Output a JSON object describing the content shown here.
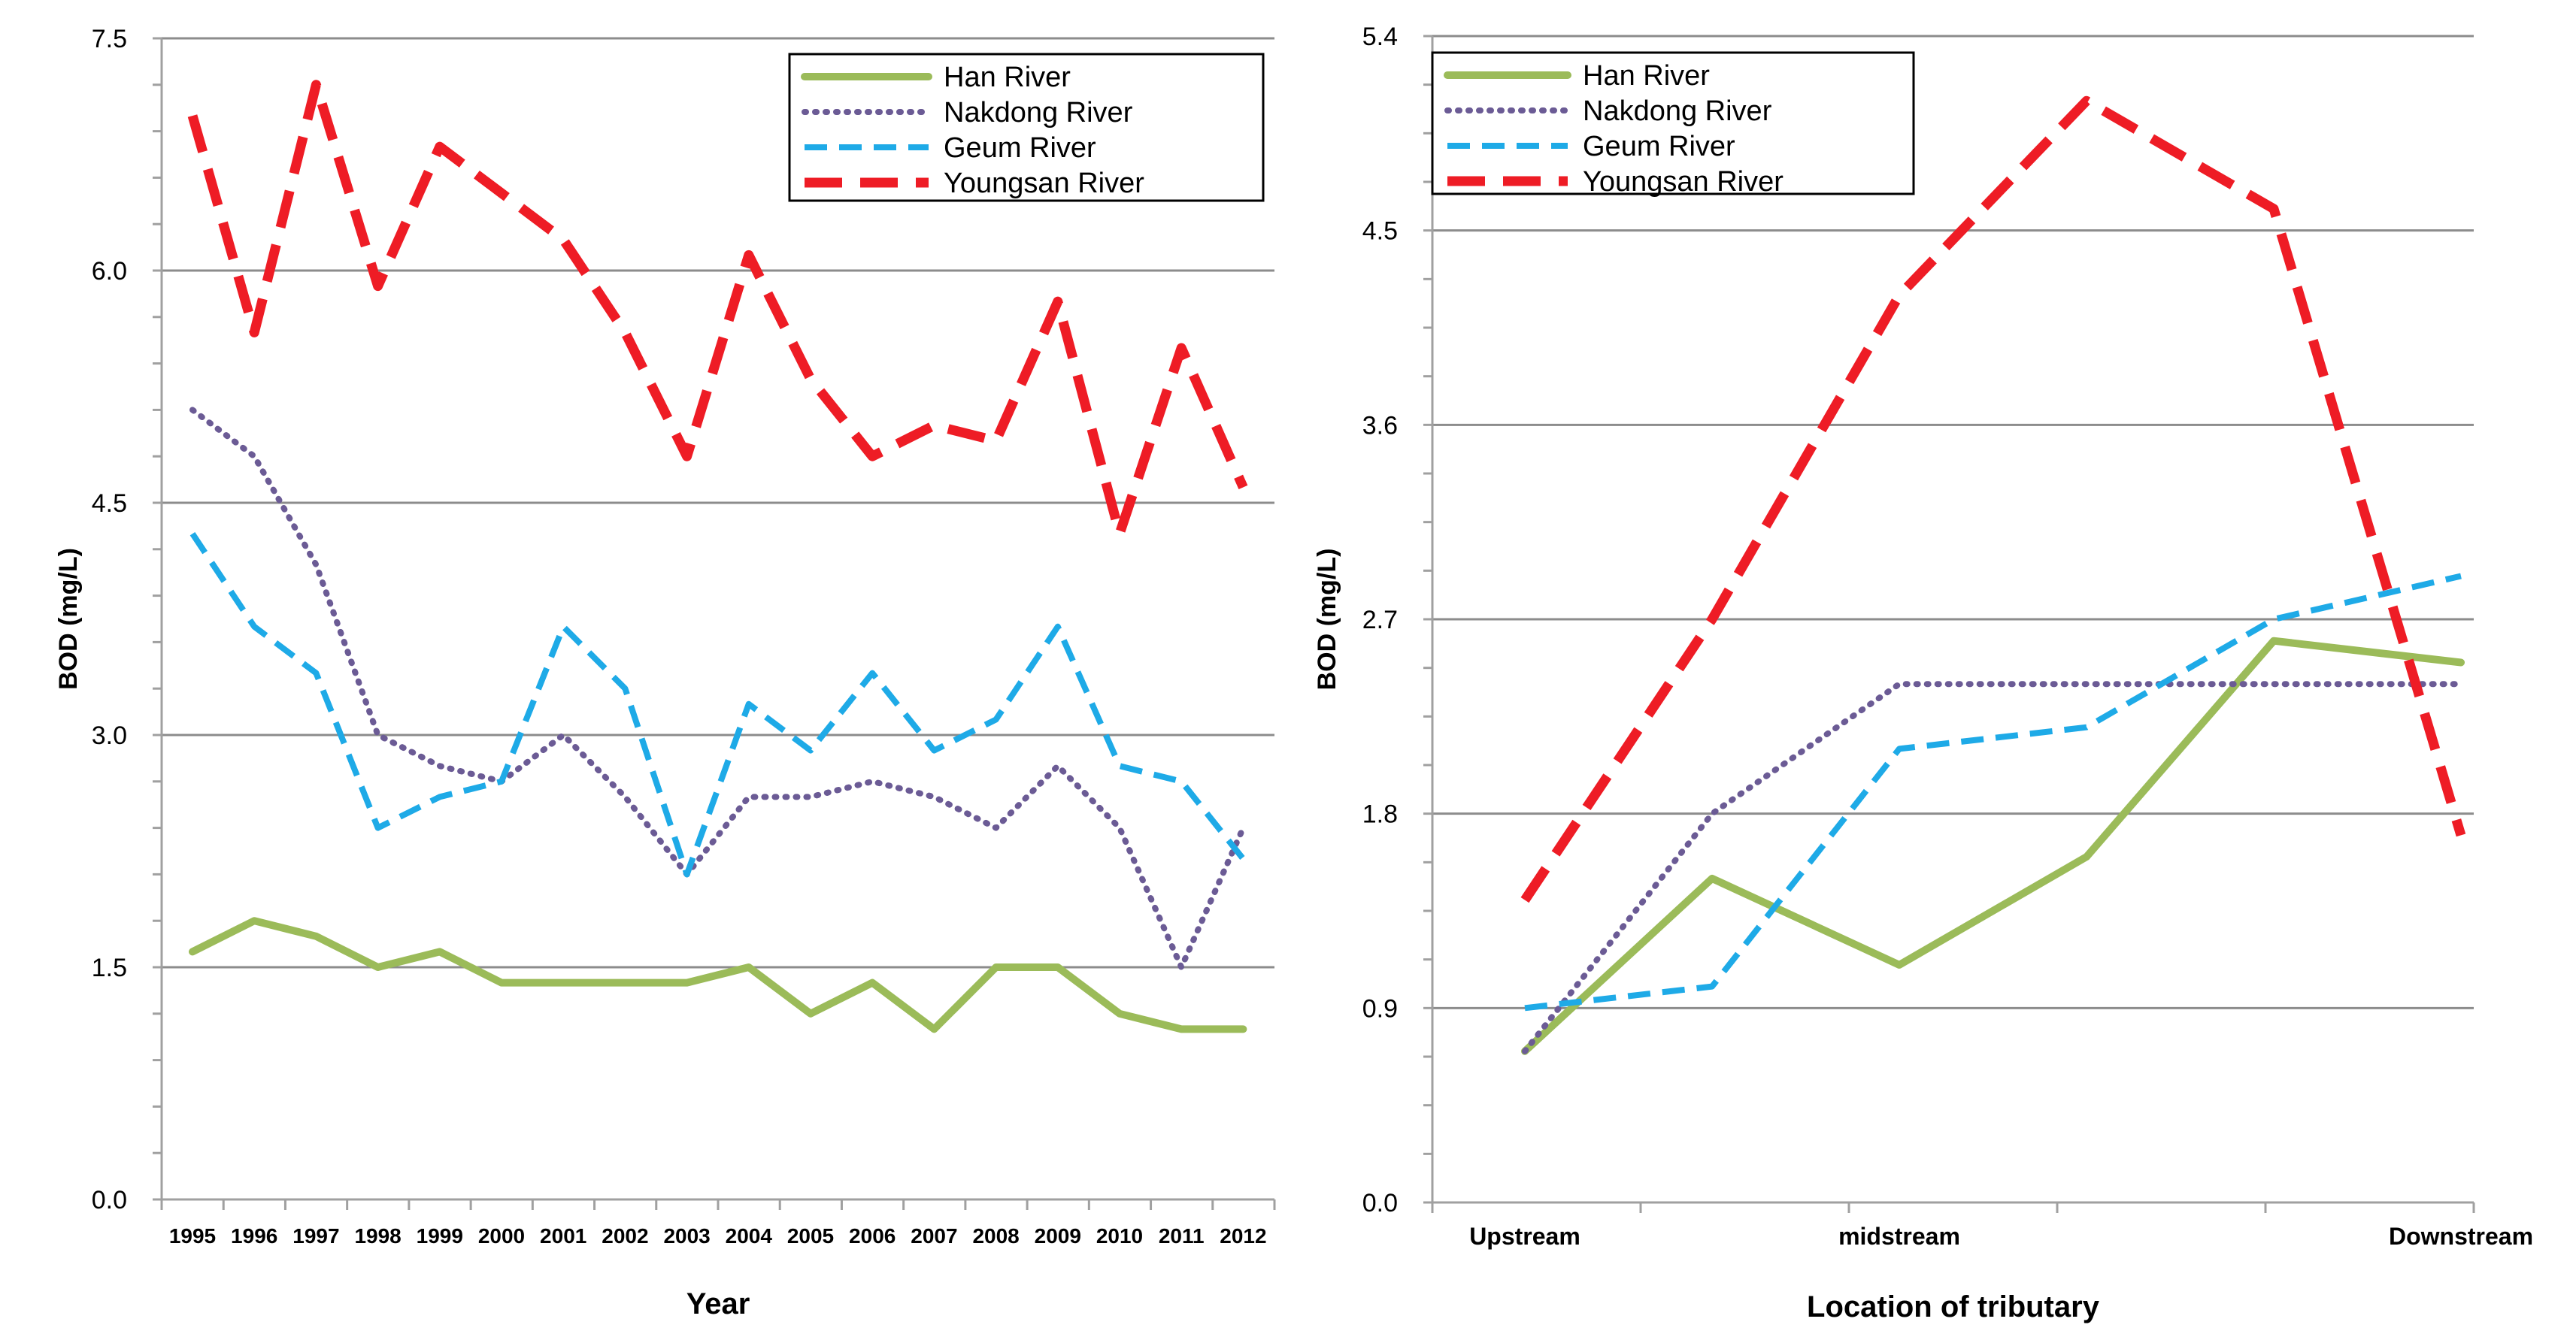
{
  "colors": {
    "han": "#9BBB59",
    "nakdong": "#6B5B95",
    "geum": "#1EAAE7",
    "youngsan": "#EE1C25",
    "grid": "#8C8C8C",
    "axis": "#A0A0A0",
    "text": "#000000"
  },
  "chart_data": [
    {
      "type": "line",
      "title": "",
      "xlabel": "Year",
      "ylabel": "BOD (mg/L)",
      "ylim": [
        0,
        7.5
      ],
      "yticks": [
        "0.0",
        "1.5",
        "3.0",
        "4.5",
        "6.0",
        "7.5"
      ],
      "categories": [
        "1995",
        "1996",
        "1997",
        "1998",
        "1999",
        "2000",
        "2001",
        "2002",
        "2003",
        "2004",
        "2005",
        "2006",
        "2007",
        "2008",
        "2009",
        "2010",
        "2011",
        "2012"
      ],
      "legend_position": "top-right",
      "series": [
        {
          "name": "Han River",
          "style": "solid",
          "color_key": "han",
          "values": [
            1.6,
            1.8,
            1.7,
            1.5,
            1.6,
            1.4,
            1.4,
            1.4,
            1.4,
            1.5,
            1.2,
            1.4,
            1.1,
            1.5,
            1.5,
            1.2,
            1.1,
            1.1
          ]
        },
        {
          "name": "Nakdong River",
          "style": "dotted",
          "color_key": "nakdong",
          "values": [
            5.1,
            4.8,
            4.1,
            3.0,
            2.8,
            2.7,
            3.0,
            2.6,
            2.1,
            2.6,
            2.6,
            2.7,
            2.6,
            2.4,
            2.8,
            2.4,
            1.5,
            2.4
          ]
        },
        {
          "name": "Geum River",
          "style": "dashed",
          "color_key": "geum",
          "values": [
            4.3,
            3.7,
            3.4,
            2.4,
            2.6,
            2.7,
            3.7,
            3.3,
            2.1,
            3.2,
            2.9,
            3.4,
            2.9,
            3.1,
            3.7,
            2.8,
            2.7,
            2.2
          ]
        },
        {
          "name": "Youngsan River",
          "style": "longdash",
          "color_key": "youngsan",
          "values": [
            7.0,
            5.6,
            7.2,
            5.9,
            6.8,
            6.5,
            6.2,
            5.6,
            4.8,
            6.1,
            5.3,
            4.8,
            5.0,
            4.9,
            5.8,
            4.3,
            5.5,
            4.6
          ]
        }
      ]
    },
    {
      "type": "line",
      "title": "",
      "xlabel": "Location of tributary",
      "ylabel": "BOD (mg/L)",
      "ylim": [
        0,
        5.4
      ],
      "yticks": [
        "0.0",
        "0.9",
        "1.8",
        "2.7",
        "3.6",
        "4.5",
        "5.4"
      ],
      "x_points": 6,
      "x_tick_labels": [
        {
          "index": 0,
          "label": "Upstream"
        },
        {
          "index": 2,
          "label": "midstream"
        },
        {
          "index": 5,
          "label": "Downstream"
        }
      ],
      "legend_position": "top-left",
      "series": [
        {
          "name": "Han River",
          "style": "solid",
          "color_key": "han",
          "values": [
            0.7,
            1.5,
            1.1,
            1.6,
            2.6,
            2.5
          ]
        },
        {
          "name": "Nakdong River",
          "style": "dotted",
          "color_key": "nakdong",
          "values": [
            0.7,
            1.8,
            2.4,
            2.4,
            2.4,
            2.4
          ]
        },
        {
          "name": "Geum River",
          "style": "dashed",
          "color_key": "geum",
          "values": [
            0.9,
            1.0,
            2.1,
            2.2,
            2.7,
            2.9
          ]
        },
        {
          "name": "Youngsan River",
          "style": "longdash",
          "color_key": "youngsan",
          "values": [
            1.4,
            2.7,
            4.2,
            5.1,
            4.6,
            1.7
          ]
        }
      ]
    }
  ]
}
